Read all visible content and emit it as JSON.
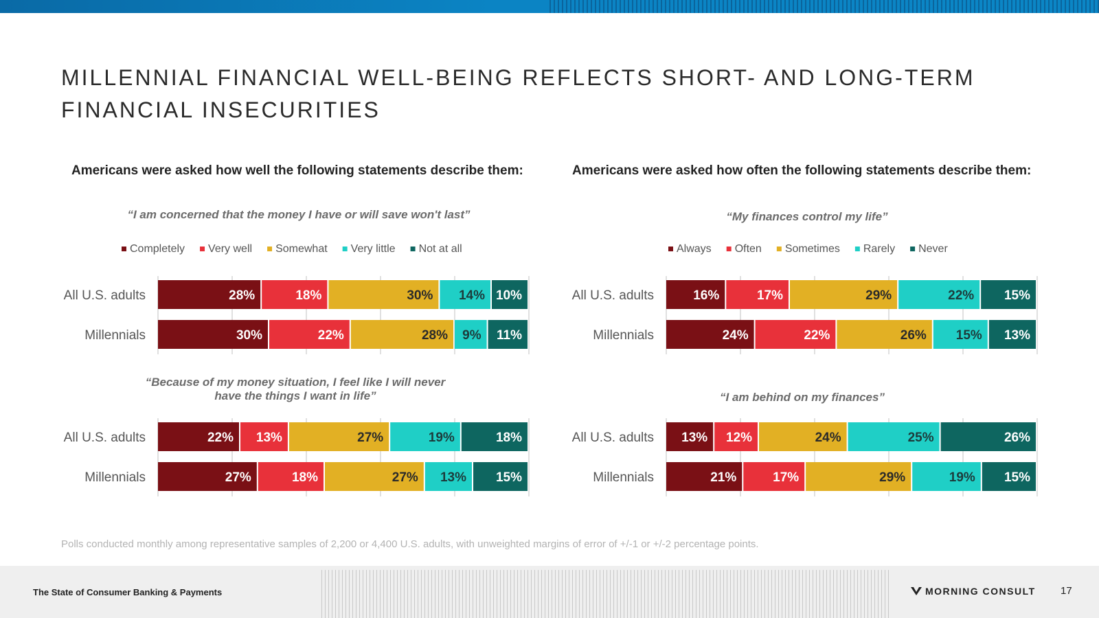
{
  "title": "MILLENNIAL FINANCIAL WELL-BEING REFLECTS SHORT- AND LONG-TERM FINANCIAL INSECURITIES",
  "left_subhead": "Americans were asked how well the following statements describe them:",
  "right_subhead": "Americans were asked how often the following statements describe them:",
  "footnote": "Polls conducted monthly among representative samples of 2,200 or 4,400 U.S. adults, with unweighted margins of error of +/-1 or +/-2 percentage points.",
  "footer": {
    "report_name": "The State of Consumer Banking & Payments",
    "brand": "MORNING CONSULT",
    "page_number": "17"
  },
  "colors": {
    "c1": "#7a1015",
    "c2": "#e8313a",
    "c3": "#e2b024",
    "c4": "#1fcfc6",
    "c5": "#0e6660",
    "top_bar": "#0b84c4"
  },
  "chart_data": [
    {
      "type": "bar",
      "orientation": "horizontal-stacked-100",
      "title": "“I am concerned that the money I have or will save won't last”",
      "categories": [
        "All U.S. adults",
        "Millennials"
      ],
      "series": [
        {
          "name": "Completely",
          "values": [
            28,
            30
          ]
        },
        {
          "name": "Very well",
          "values": [
            18,
            22
          ]
        },
        {
          "name": "Somewhat",
          "values": [
            30,
            28
          ]
        },
        {
          "name": "Very little",
          "values": [
            14,
            9
          ]
        },
        {
          "name": "Not at all",
          "values": [
            10,
            11
          ]
        }
      ],
      "value_format": "percent",
      "legend": "top"
    },
    {
      "type": "bar",
      "orientation": "horizontal-stacked-100",
      "title": "“Because of my money situation, I feel like I will never have the things I want in life”",
      "categories": [
        "All U.S. adults",
        "Millennials"
      ],
      "series": [
        {
          "name": "Completely",
          "values": [
            22,
            27
          ]
        },
        {
          "name": "Very well",
          "values": [
            13,
            18
          ]
        },
        {
          "name": "Somewhat",
          "values": [
            27,
            27
          ]
        },
        {
          "name": "Very little",
          "values": [
            19,
            13
          ]
        },
        {
          "name": "Not at all",
          "values": [
            18,
            15
          ]
        }
      ],
      "value_format": "percent",
      "legend": "none"
    },
    {
      "type": "bar",
      "orientation": "horizontal-stacked-100",
      "title": "“My finances control my life”",
      "categories": [
        "All U.S. adults",
        "Millennials"
      ],
      "series": [
        {
          "name": "Always",
          "values": [
            16,
            24
          ]
        },
        {
          "name": "Often",
          "values": [
            17,
            22
          ]
        },
        {
          "name": "Sometimes",
          "values": [
            29,
            26
          ]
        },
        {
          "name": "Rarely",
          "values": [
            22,
            15
          ]
        },
        {
          "name": "Never",
          "values": [
            15,
            13
          ]
        }
      ],
      "value_format": "percent",
      "legend": "top"
    },
    {
      "type": "bar",
      "orientation": "horizontal-stacked-100",
      "title": "“I am behind on my finances”",
      "categories": [
        "All U.S. adults",
        "Millennials"
      ],
      "series": [
        {
          "name": "Always",
          "values": [
            13,
            21
          ]
        },
        {
          "name": "Often",
          "values": [
            12,
            17
          ]
        },
        {
          "name": "Sometimes",
          "values": [
            24,
            29
          ]
        },
        {
          "name": "Rarely",
          "values": [
            25,
            19
          ]
        },
        {
          "name": "Never",
          "values": [
            26,
            15
          ]
        }
      ],
      "value_format": "percent",
      "legend": "none"
    }
  ]
}
